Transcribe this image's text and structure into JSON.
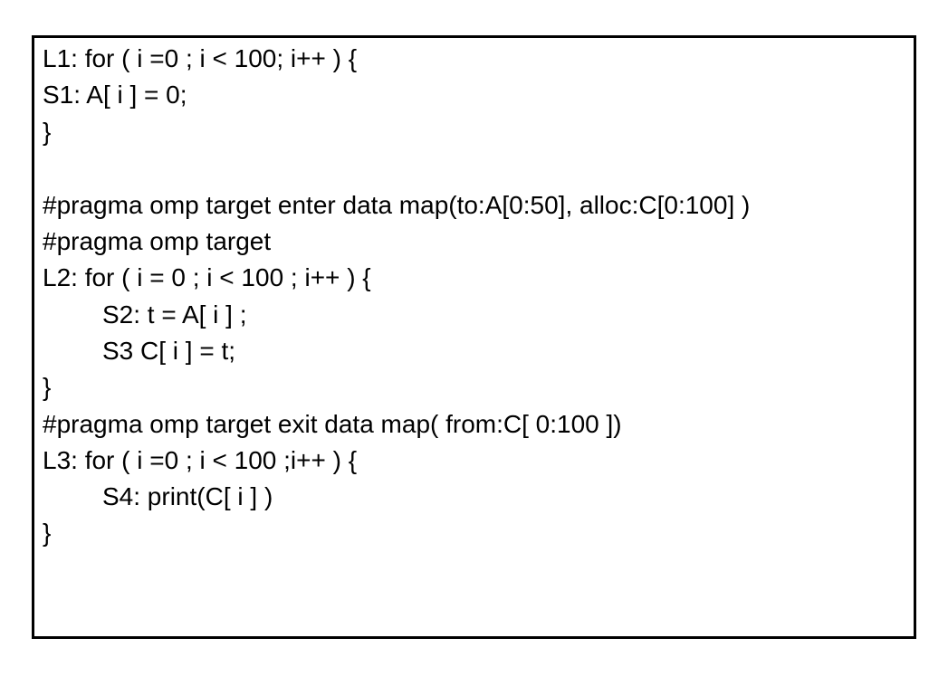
{
  "code": {
    "lines": [
      "L1: for ( i =0 ; i < 100; i++ ) {",
      "S1: A[ i ] = 0;",
      "}",
      "#pragma omp target enter data map(to:A[0:50], alloc:C[0:100] )",
      "#pragma omp target",
      "L2: for ( i = 0 ; i < 100 ; i++ ) {",
      "S2: t = A[ i ] ;",
      "S3 C[ i ] = t;",
      "}",
      "#pragma omp target exit data map( from:C[ 0:100 ])",
      "L3: for ( i =0 ; i < 100 ;i++ ) {",
      "S4: print(C[ i ] )",
      "}"
    ]
  }
}
